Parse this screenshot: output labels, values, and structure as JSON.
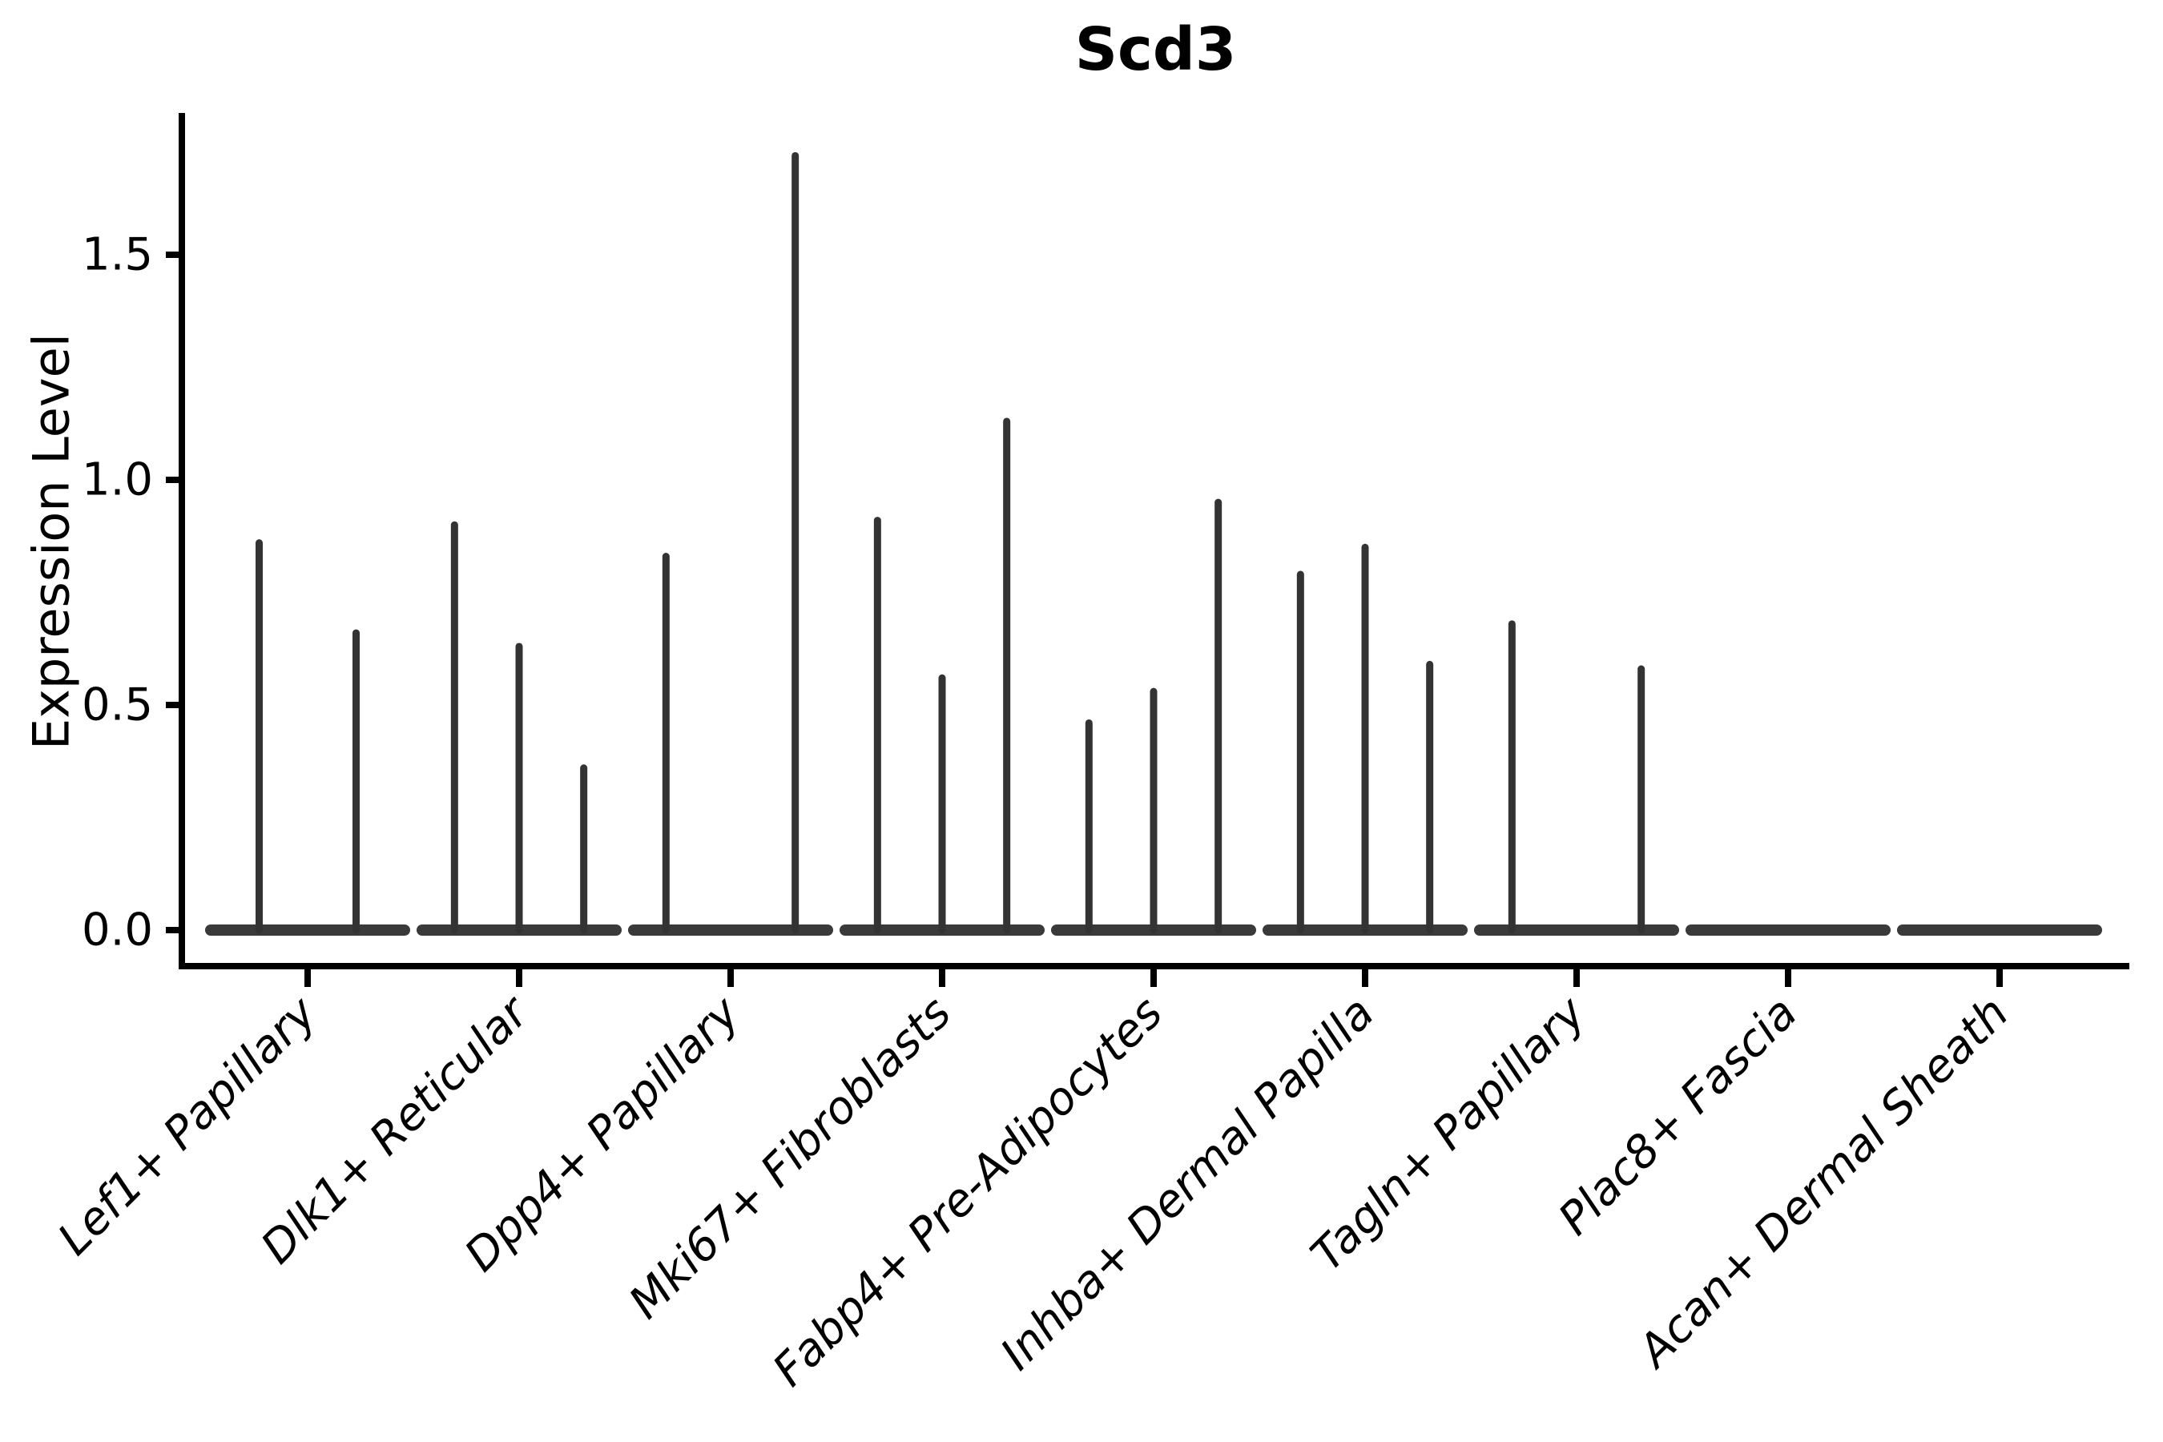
{
  "figure": {
    "background": "#ffffff"
  },
  "chart_data": {
    "type": "violin",
    "title": "Scd3",
    "ylabel": "Expression Level",
    "xlabel": "",
    "grid": false,
    "legend": null,
    "ylim": [
      -0.08,
      1.82
    ],
    "yticks": {
      "values": [
        0,
        0.5,
        1.0,
        1.5
      ],
      "labels": [
        "0.0",
        "0.5",
        "1.0",
        "1.5"
      ]
    },
    "categories": [
      "Lef1+ Papillary",
      "Dlk1+ Reticular",
      "Dpp4+ Papillary",
      "Mki67+ Fibroblasts",
      "Fabp4+ Pre-Adipocytes",
      "Inhba+ Dermal Papilla",
      "Tagln+ Papillary",
      "Plac8+ Fascia",
      "Acan+ Dermal Sheath"
    ],
    "violin_max_expression": [
      [
        0.86,
        0.66
      ],
      [
        0.9,
        0.63,
        0.36
      ],
      [
        0.83,
        0,
        1.72
      ],
      [
        0.91,
        0.56,
        1.13
      ],
      [
        0.46,
        0.53,
        0.95
      ],
      [
        0.79,
        0.85,
        0.59
      ],
      [
        0.68,
        0,
        0.58
      ],
      [
        0,
        0,
        0
      ],
      [
        0,
        0,
        0
      ]
    ],
    "style": {
      "needle_color": "#333333",
      "baseline_color": "#3a3a3a",
      "axis_color": "#000000",
      "xtick_rotation_deg": 45,
      "xtick_italic": true,
      "title_bold": true
    }
  }
}
